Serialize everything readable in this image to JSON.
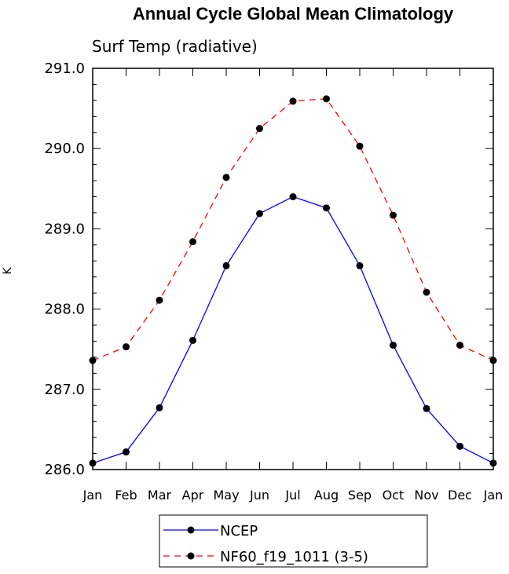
{
  "chart_data": {
    "type": "line",
    "title": "Annual Cycle Global Mean Climatology",
    "subtitle": "Surf Temp (radiative)",
    "xlabel": "",
    "ylabel": "K",
    "categories": [
      "Jan",
      "Feb",
      "Mar",
      "Apr",
      "May",
      "Jun",
      "Jul",
      "Aug",
      "Sep",
      "Oct",
      "Nov",
      "Dec",
      "Jan"
    ],
    "ylim": [
      286.0,
      291.0
    ],
    "yticks": [
      "286.0",
      "287.0",
      "288.0",
      "289.0",
      "290.0",
      "291.0"
    ],
    "legend_position": "bottom-center",
    "series": [
      {
        "name": "NCEP",
        "color": "#0000ff",
        "style": "solid",
        "values": [
          286.08,
          286.22,
          286.77,
          287.61,
          288.54,
          289.19,
          289.4,
          289.26,
          288.54,
          287.55,
          286.76,
          286.29,
          286.08
        ]
      },
      {
        "name": "NF60_f19_1011 (3-5)",
        "color": "#ff0000",
        "style": "dashed",
        "values": [
          287.36,
          287.53,
          288.11,
          288.84,
          289.64,
          290.25,
          290.59,
          290.62,
          290.03,
          289.17,
          288.21,
          287.55,
          287.36
        ]
      }
    ]
  }
}
